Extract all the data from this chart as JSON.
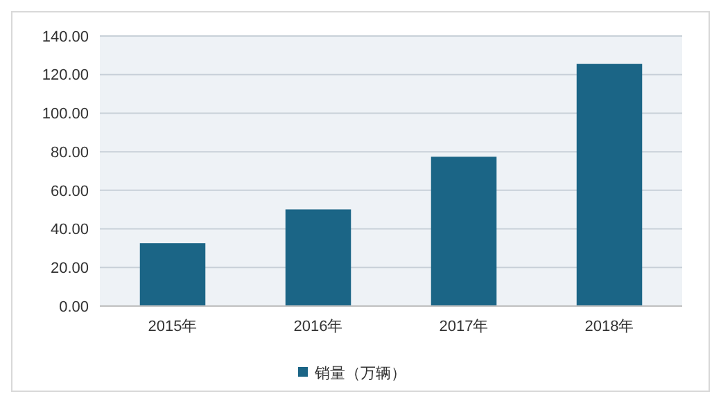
{
  "chart_data": {
    "type": "bar",
    "categories": [
      "2015年",
      "2016年",
      "2017年",
      "2018年"
    ],
    "series": [
      {
        "name": "销量（万辆）",
        "color": "#1b6586",
        "values": [
          32.6,
          50.1,
          77.4,
          125.6
        ]
      }
    ],
    "ylim": [
      0,
      140
    ],
    "yticks": [
      {
        "value": 0,
        "label": "0.00"
      },
      {
        "value": 20,
        "label": "20.00"
      },
      {
        "value": 40,
        "label": "40.00"
      },
      {
        "value": 60,
        "label": "60.00"
      },
      {
        "value": 80,
        "label": "80.00"
      },
      {
        "value": 100,
        "label": "100.00"
      },
      {
        "value": 120,
        "label": "120.00"
      },
      {
        "value": 140,
        "label": "140.00"
      }
    ],
    "grid": "y",
    "legend": "bottom"
  }
}
